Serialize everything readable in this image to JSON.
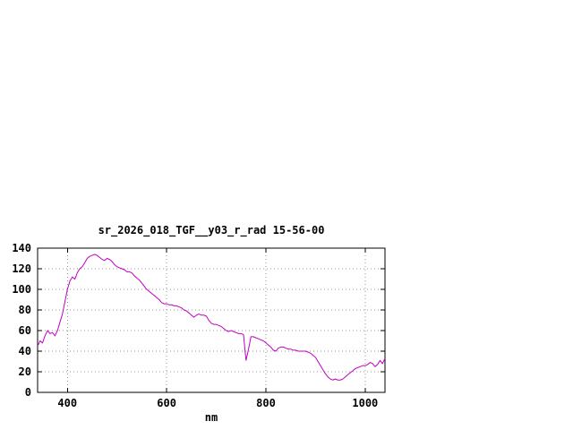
{
  "page": {
    "background": "#ffffff"
  },
  "chart_data": {
    "type": "line",
    "title": "sr_2026_018_TGF__y03_r_rad 15-56-00",
    "xlabel": "nm",
    "ylabel": "",
    "xlim": [
      340,
      1040
    ],
    "ylim": [
      0,
      140
    ],
    "x_ticks": [
      400,
      600,
      800,
      1000
    ],
    "y_ticks": [
      0,
      20,
      40,
      60,
      80,
      100,
      120,
      140
    ],
    "grid": true,
    "legend": "none",
    "line_color": "#c000c0",
    "series": [
      {
        "x": [
          340,
          345,
          350,
          355,
          360,
          365,
          370,
          375,
          380,
          385,
          390,
          395,
          400,
          405,
          410,
          415,
          420,
          425,
          430,
          435,
          440,
          445,
          450,
          455,
          460,
          465,
          470,
          475,
          480,
          485,
          490,
          495,
          500,
          505,
          510,
          515,
          520,
          525,
          530,
          535,
          540,
          545,
          550,
          555,
          560,
          565,
          570,
          575,
          580,
          585,
          590,
          595,
          600,
          605,
          610,
          615,
          620,
          625,
          630,
          635,
          640,
          645,
          650,
          655,
          660,
          665,
          670,
          675,
          680,
          685,
          690,
          695,
          700,
          705,
          710,
          715,
          720,
          725,
          730,
          735,
          740,
          745,
          750,
          755,
          760,
          765,
          770,
          775,
          780,
          785,
          790,
          795,
          800,
          805,
          810,
          815,
          820,
          825,
          830,
          835,
          840,
          845,
          850,
          855,
          860,
          865,
          870,
          875,
          880,
          885,
          890,
          895,
          900,
          905,
          910,
          915,
          920,
          925,
          930,
          935,
          940,
          945,
          950,
          955,
          960,
          965,
          970,
          975,
          980,
          985,
          990,
          995,
          1000,
          1005,
          1010,
          1015,
          1020,
          1025,
          1030,
          1035,
          1040
        ],
        "y": [
          45,
          50,
          48,
          55,
          60,
          57,
          58,
          55,
          60,
          68,
          76,
          88,
          100,
          108,
          112,
          110,
          116,
          120,
          122,
          126,
          130,
          132,
          133,
          134,
          133,
          131,
          129,
          128,
          130,
          129,
          127,
          124,
          122,
          121,
          120,
          119,
          117,
          117,
          116,
          113,
          111,
          109,
          106,
          103,
          100,
          98,
          96,
          94,
          92,
          90,
          87,
          86,
          86,
          85,
          85,
          84,
          84,
          83,
          82,
          80,
          79,
          77,
          75,
          73,
          75,
          76,
          75,
          75,
          74,
          70,
          67,
          66,
          66,
          65,
          64,
          62,
          60,
          59,
          60,
          59,
          58,
          57,
          57,
          56,
          31,
          42,
          54,
          54,
          53,
          52,
          51,
          50,
          48,
          46,
          44,
          41,
          40,
          43,
          44,
          44,
          43,
          42,
          42,
          41,
          41,
          40,
          40,
          40,
          40,
          39,
          38,
          36,
          34,
          30,
          26,
          22,
          18,
          15,
          13,
          12,
          13,
          12,
          12,
          13,
          15,
          17,
          19,
          21,
          23,
          24,
          25,
          26,
          26,
          27,
          29,
          28,
          25,
          27,
          31,
          28,
          33
        ]
      }
    ]
  }
}
